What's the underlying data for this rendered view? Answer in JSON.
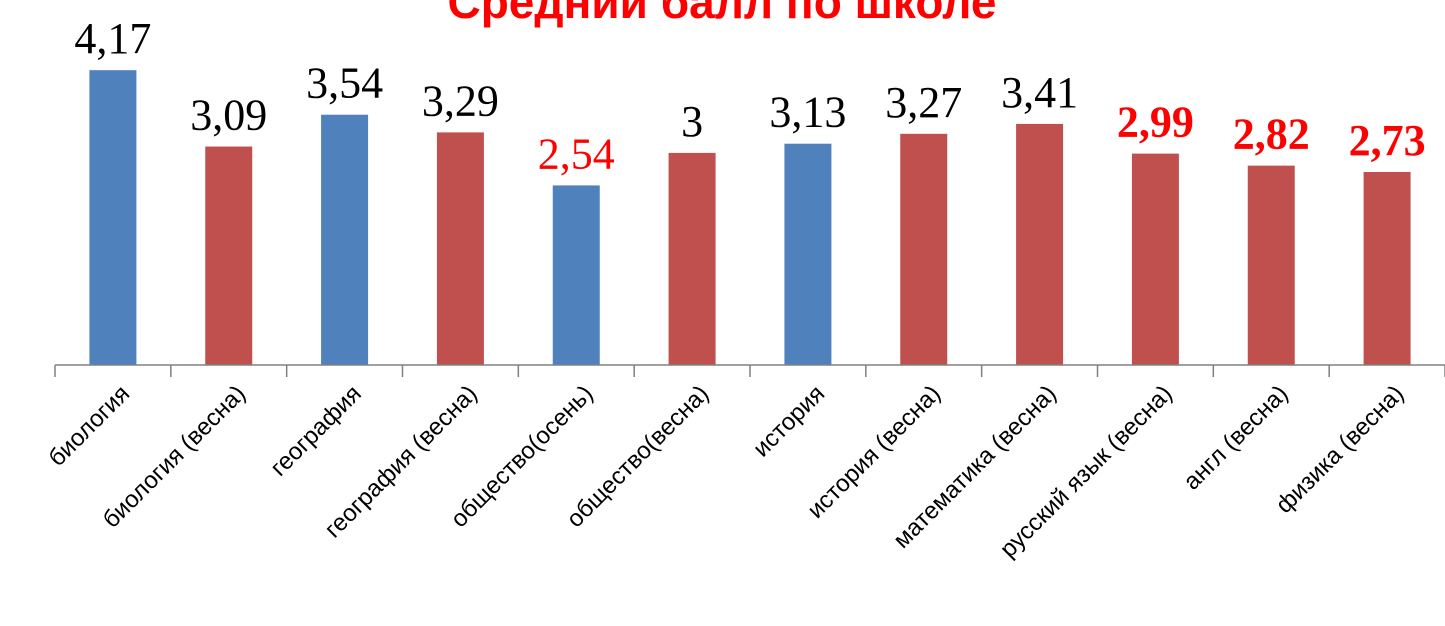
{
  "title": "Средний балл по школе",
  "chart_data": {
    "type": "bar",
    "title": "Средний балл по школе",
    "xlabel": "",
    "ylabel": "",
    "ylim": [
      0,
      4.4
    ],
    "grid": false,
    "legend": "none",
    "categories": [
      "биология",
      "биология (весна)",
      "география",
      "география (весна)",
      "общество(осень)",
      "общество(весна)",
      "история",
      "история (весна)",
      "математика (весна)",
      "русский язык (весна)",
      "англ (весна)",
      "физика (весна)"
    ],
    "values": [
      4.17,
      3.09,
      3.54,
      3.29,
      2.54,
      3.0,
      3.13,
      3.27,
      3.41,
      2.99,
      2.82,
      2.73
    ],
    "value_labels": [
      "4,17",
      "3,09",
      "3,54",
      "3,29",
      "2,54",
      "3",
      "3,13",
      "3,27",
      "3,41",
      "2,99",
      "2,82",
      "2,73"
    ],
    "bar_colors": [
      "#4f81bd",
      "#c0504d",
      "#4f81bd",
      "#c0504d",
      "#4f81bd",
      "#c0504d",
      "#4f81bd",
      "#c0504d",
      "#c0504d",
      "#c0504d",
      "#c0504d",
      "#c0504d"
    ],
    "label_colors": [
      "#000000",
      "#000000",
      "#000000",
      "#000000",
      "#ff0000",
      "#000000",
      "#000000",
      "#000000",
      "#000000",
      "#ff0000",
      "#ff0000",
      "#ff0000"
    ],
    "label_bold": [
      false,
      false,
      false,
      false,
      false,
      false,
      false,
      false,
      false,
      true,
      true,
      true
    ]
  },
  "colors": {
    "blue_bar": "#4f81bd",
    "red_bar": "#c0504d",
    "highlight_text": "#ff0000",
    "title": "#ff0000",
    "axis": "#808080"
  }
}
